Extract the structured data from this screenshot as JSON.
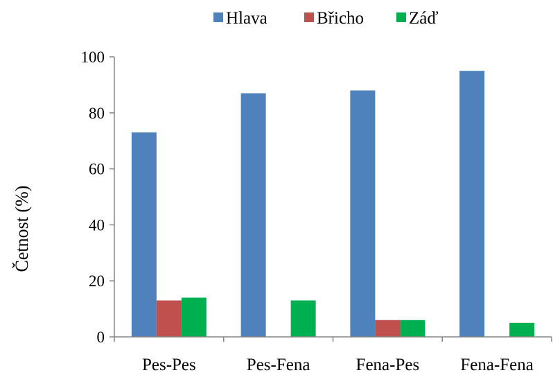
{
  "chart_data": {
    "type": "bar",
    "categories": [
      "Pes-Pes",
      "Pes-Fena",
      "Fena-Pes",
      "Fena-Fena"
    ],
    "series": [
      {
        "name": "Hlava",
        "color": "#4f81bd",
        "values": [
          73,
          87,
          88,
          95
        ]
      },
      {
        "name": "Břicho",
        "color": "#c0504d",
        "values": [
          13,
          0,
          6,
          0
        ]
      },
      {
        "name": "Záď",
        "color": "#00b050",
        "values": [
          14,
          13,
          6,
          5
        ]
      }
    ],
    "xlabel": "",
    "ylabel": "Četnost (%)",
    "ylim": [
      0,
      100
    ],
    "yticks": [
      "0",
      "20",
      "40",
      "60",
      "80",
      "100"
    ],
    "grid": false,
    "legend_position": "top"
  }
}
